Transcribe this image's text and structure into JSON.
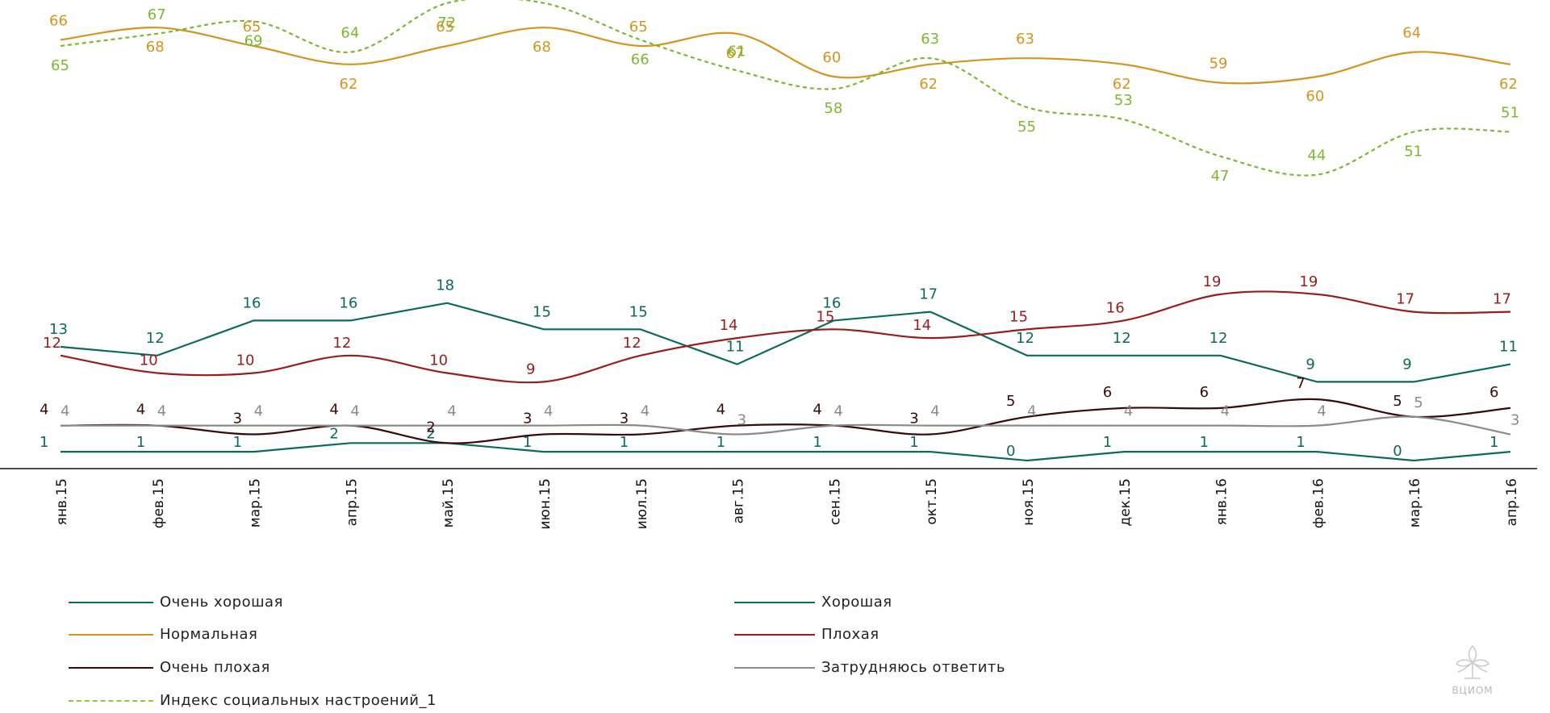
{
  "chart_data": {
    "type": "line",
    "categories": [
      "янв.15",
      "фев.15",
      "мар.15",
      "апр.15",
      "май.15",
      "июн.15",
      "июл.15",
      "авг.15",
      "сен.15",
      "окт.15",
      "ноя.15",
      "дек.15",
      "янв.16",
      "фев.16",
      "мар.16",
      "апр.16"
    ],
    "legend_position": "bottom",
    "grid": false,
    "series": [
      {
        "key": "very_good",
        "name": "Очень хорошая",
        "color": "#0b6b5a",
        "dashed": false,
        "values": [
          1,
          1,
          1,
          2,
          2,
          1,
          1,
          1,
          1,
          1,
          0,
          1,
          1,
          1,
          0,
          1
        ]
      },
      {
        "key": "good",
        "name": "Хорошая",
        "color": "#0b6b5a",
        "dashed": false,
        "values": [
          13,
          12,
          16,
          16,
          18,
          15,
          15,
          11,
          16,
          17,
          12,
          12,
          12,
          9,
          9,
          11
        ]
      },
      {
        "key": "normal",
        "name": "Нормальная",
        "color": "#d5941e",
        "dashed": false,
        "values": [
          66,
          68,
          65,
          62,
          65,
          68,
          65,
          67,
          60,
          62,
          63,
          62,
          59,
          60,
          64,
          62
        ]
      },
      {
        "key": "bad",
        "name": "Плохая",
        "color": "#9b1c1c",
        "dashed": false,
        "values": [
          12,
          10,
          10,
          12,
          10,
          9,
          12,
          14,
          15,
          14,
          15,
          16,
          19,
          19,
          17,
          17
        ]
      },
      {
        "key": "very_bad",
        "name": "Очень плохая",
        "color": "#3a0a0a",
        "dashed": false,
        "values": [
          4,
          4,
          3,
          4,
          2,
          3,
          3,
          4,
          4,
          3,
          5,
          6,
          6,
          7,
          5,
          6
        ]
      },
      {
        "key": "hard",
        "name": "Затрудняюсь ответить",
        "color": "#8a8a8a",
        "dashed": false,
        "values": [
          4,
          4,
          4,
          4,
          4,
          4,
          4,
          3,
          4,
          4,
          4,
          4,
          4,
          4,
          5,
          3
        ]
      },
      {
        "key": "index",
        "name": "Индекс социальных настроений_1",
        "color": "#7cb82f",
        "dashed": true,
        "values": [
          65,
          67,
          69,
          64,
          72,
          72,
          66,
          61,
          58,
          63,
          55,
          53,
          47,
          44,
          51,
          51
        ]
      }
    ]
  },
  "logo": {
    "text": "ВЦИОМ"
  }
}
